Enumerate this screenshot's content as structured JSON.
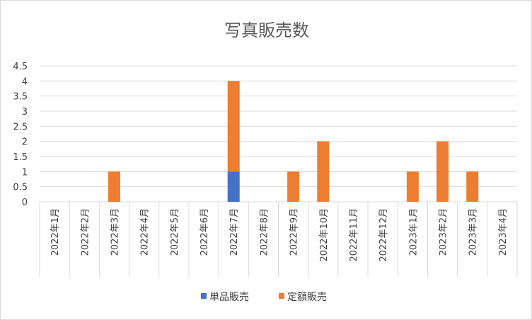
{
  "chart_data": {
    "type": "bar",
    "stacked": true,
    "title": "写真販売数",
    "categories": [
      "2022年1月",
      "2022年2月",
      "2022年3月",
      "2022年4月",
      "2022年5月",
      "2022年6月",
      "2022年7月",
      "2022年8月",
      "2022年9月",
      "2022年10月",
      "2022年11月",
      "2022年12月",
      "2023年1月",
      "2023年2月",
      "2023年3月",
      "2023年4月"
    ],
    "series": [
      {
        "name": "単品販売",
        "color": "#4472c4",
        "values": [
          0,
          0,
          0,
          0,
          0,
          0,
          1,
          0,
          0,
          0,
          0,
          0,
          0,
          0,
          0,
          0
        ]
      },
      {
        "name": "定額販売",
        "color": "#ed7d31",
        "values": [
          0,
          0,
          1,
          0,
          0,
          0,
          3,
          0,
          1,
          2,
          0,
          0,
          1,
          2,
          1,
          0
        ]
      }
    ],
    "yticks": [
      "0",
      "0.5",
      "1",
      "1.5",
      "2",
      "2.5",
      "3",
      "3.5",
      "4",
      "4.5"
    ],
    "ylim": [
      0,
      4.5
    ],
    "grid": true,
    "legend_position": "bottom"
  }
}
